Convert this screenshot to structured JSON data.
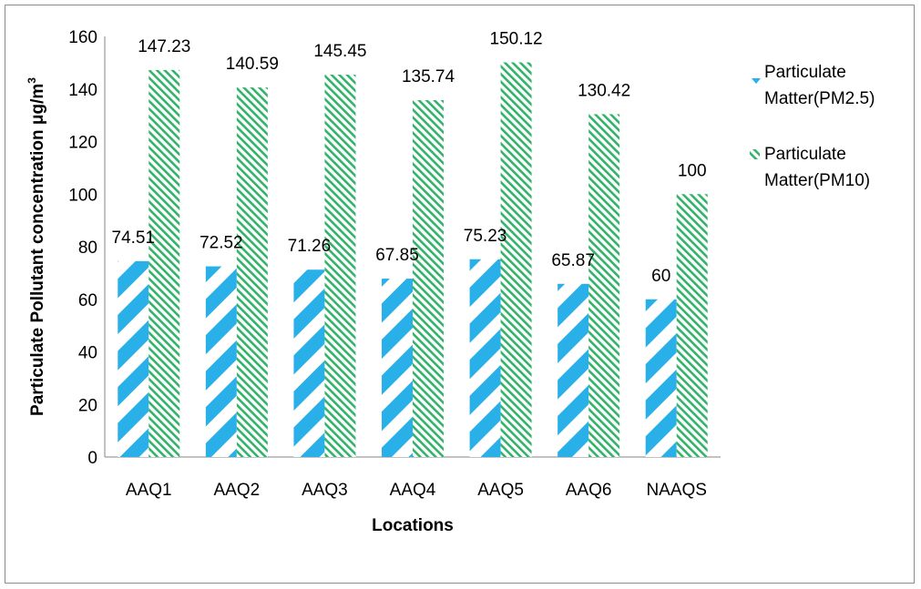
{
  "chart_data": {
    "type": "bar",
    "categories": [
      "AAQ1",
      "AAQ2",
      "AAQ3",
      "AAQ4",
      "AAQ5",
      "AAQ6",
      "NAAQS"
    ],
    "series": [
      {
        "name": "Particulate Matter(PM2.5)",
        "values": [
          74.51,
          72.52,
          71.26,
          67.85,
          75.23,
          65.87,
          60
        ],
        "color": "#2ab0e8",
        "pattern": "wide-diagonal"
      },
      {
        "name": "Particulate Matter(PM10)",
        "values": [
          147.23,
          140.59,
          145.45,
          135.74,
          150.12,
          130.42,
          100
        ],
        "color": "#33b36a",
        "pattern": "narrow-diagonal"
      }
    ],
    "data_labels": {
      "pm25": [
        "74.51",
        "72.52",
        "71.26",
        "67.85",
        "75.23",
        "65.87",
        "60"
      ],
      "pm10": [
        "147.23",
        "140.59",
        "145.45",
        "135.74",
        "150.12",
        "130.42",
        "100"
      ]
    },
    "ylim": [
      0,
      160
    ],
    "yticks": [
      "0",
      "20",
      "40",
      "60",
      "80",
      "100",
      "120",
      "140",
      "160"
    ],
    "xlabel": "Locations",
    "ylabel": "Particulate Pollutant concentration μg/m",
    "ylabel_superscript": "3",
    "legend": {
      "position": "right",
      "items": [
        {
          "line1": "Particulate",
          "line2": "Matter(PM2.5)"
        },
        {
          "line1": "Particulate",
          "line2": "Matter(PM10)"
        }
      ]
    },
    "grid": false
  }
}
